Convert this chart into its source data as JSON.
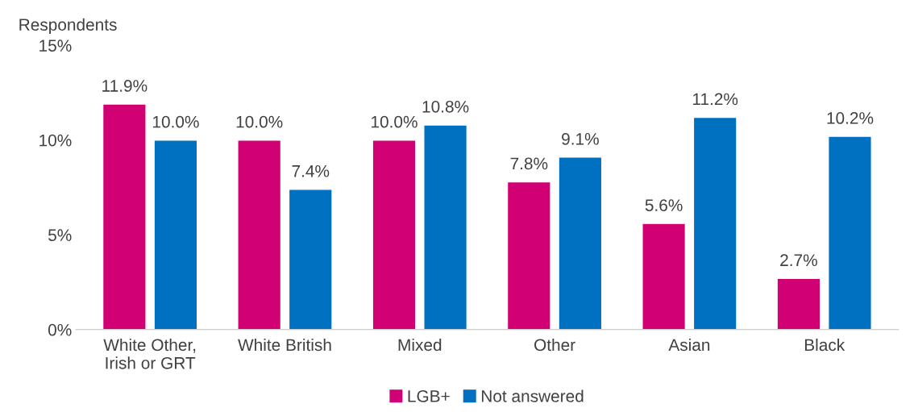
{
  "chart_data": {
    "type": "bar",
    "ylabel": "Respondents",
    "categories": [
      "White Other,\nIrish or GRT",
      "White British",
      "Mixed",
      "Other",
      "Asian",
      "Black"
    ],
    "series": [
      {
        "name": "LGB+",
        "color": "#d10073",
        "values": [
          11.9,
          10.0,
          10.0,
          7.8,
          5.6,
          2.7
        ],
        "value_labels": [
          "11.9%",
          "10.0%",
          "10.0%",
          "7.8%",
          "5.6%",
          "2.7%"
        ]
      },
      {
        "name": "Not answered",
        "color": "#0070c0",
        "values": [
          10.0,
          7.4,
          10.8,
          9.1,
          11.2,
          10.2
        ],
        "value_labels": [
          "10.0%",
          "7.4%",
          "10.8%",
          "9.1%",
          "11.2%",
          "10.2%"
        ]
      }
    ],
    "ylim": [
      0,
      15
    ],
    "yticks": [
      {
        "value": 0,
        "label": "0%"
      },
      {
        "value": 5,
        "label": "5%"
      },
      {
        "value": 10,
        "label": "10%"
      },
      {
        "value": 15,
        "label": "15%"
      }
    ],
    "grid": false,
    "legend": "bottom"
  }
}
